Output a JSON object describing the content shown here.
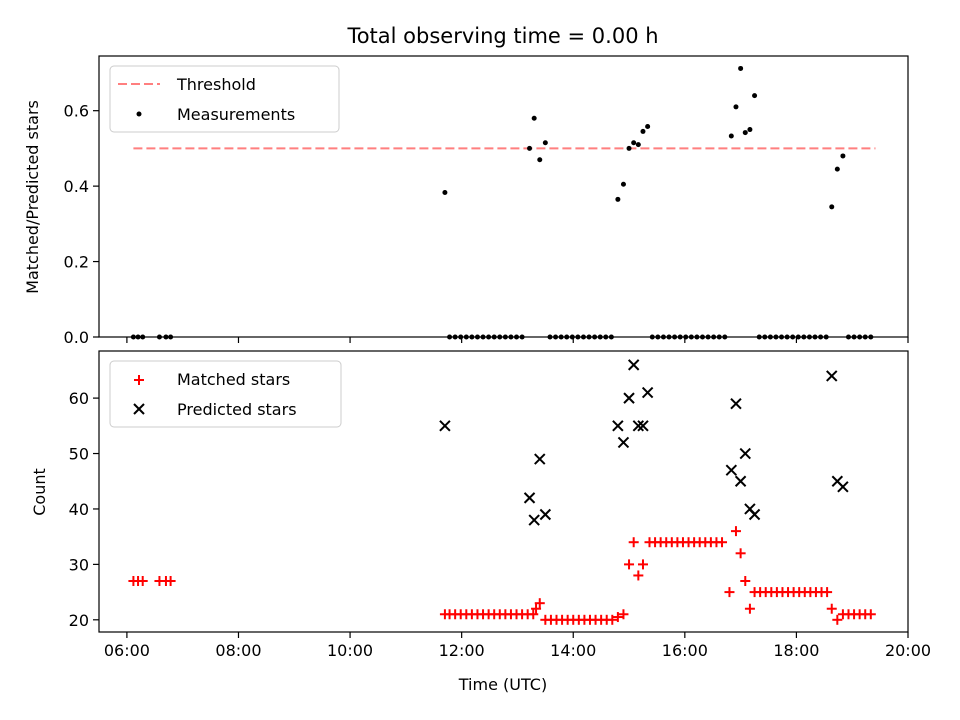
{
  "chart_data": [
    {
      "type": "scatter",
      "title": "Total observing time = 0.00 h",
      "xlabel": "",
      "ylabel": "Matched/Predicted stars",
      "xlim": [
        "05:30",
        "20:00"
      ],
      "ylim": [
        0,
        0.745
      ],
      "x_ticks": [
        "06:00",
        "08:00",
        "10:00",
        "12:00",
        "14:00",
        "16:00",
        "18:00",
        "20:00"
      ],
      "y_ticks": [
        "0.0",
        "0.2",
        "0.4",
        "0.6"
      ],
      "grid": false,
      "legend": {
        "position": "top-left",
        "entries": [
          {
            "label": "Threshold",
            "style": "dashed-line",
            "color": "#ff7f7f"
          },
          {
            "label": "Measurements",
            "style": "dot",
            "color": "#000000"
          }
        ]
      },
      "threshold": {
        "name": "Threshold",
        "y": 0.5,
        "x_start": "06:07",
        "x_end": "19:25",
        "color": "#ff7f7f"
      },
      "series": [
        {
          "name": "Measurements",
          "color": "#000000",
          "points": [
            [
              "06:07",
              0
            ],
            [
              "06:12",
              0
            ],
            [
              "06:17",
              0
            ],
            [
              "06:35",
              0
            ],
            [
              "06:42",
              0
            ],
            [
              "06:47",
              0
            ],
            [
              "11:42",
              0.383
            ],
            [
              "11:47",
              0
            ],
            [
              "11:53",
              0
            ],
            [
              "11:59",
              0
            ],
            [
              "12:05",
              0
            ],
            [
              "12:11",
              0
            ],
            [
              "12:17",
              0
            ],
            [
              "12:23",
              0
            ],
            [
              "12:29",
              0
            ],
            [
              "12:35",
              0
            ],
            [
              "12:41",
              0
            ],
            [
              "12:47",
              0
            ],
            [
              "12:53",
              0
            ],
            [
              "12:59",
              0
            ],
            [
              "13:05",
              0
            ],
            [
              "13:13",
              0.5
            ],
            [
              "13:18",
              0.58
            ],
            [
              "13:24",
              0.47
            ],
            [
              "13:30",
              0.515
            ],
            [
              "13:35",
              0
            ],
            [
              "13:41",
              0
            ],
            [
              "13:47",
              0
            ],
            [
              "13:53",
              0
            ],
            [
              "13:59",
              0
            ],
            [
              "14:05",
              0
            ],
            [
              "14:11",
              0
            ],
            [
              "14:17",
              0
            ],
            [
              "14:23",
              0
            ],
            [
              "14:29",
              0
            ],
            [
              "14:35",
              0
            ],
            [
              "14:41",
              0
            ],
            [
              "14:48",
              0.365
            ],
            [
              "14:54",
              0.405
            ],
            [
              "15:00",
              0.5
            ],
            [
              "15:05",
              0.515
            ],
            [
              "15:10",
              0.51
            ],
            [
              "15:15",
              0.545
            ],
            [
              "15:20",
              0.558
            ],
            [
              "15:25",
              0
            ],
            [
              "15:31",
              0
            ],
            [
              "15:37",
              0
            ],
            [
              "15:43",
              0
            ],
            [
              "15:49",
              0
            ],
            [
              "15:55",
              0
            ],
            [
              "16:01",
              0
            ],
            [
              "16:07",
              0
            ],
            [
              "16:13",
              0
            ],
            [
              "16:19",
              0
            ],
            [
              "16:25",
              0
            ],
            [
              "16:31",
              0
            ],
            [
              "16:37",
              0
            ],
            [
              "16:43",
              0
            ],
            [
              "16:50",
              0.533
            ],
            [
              "16:55",
              0.61
            ],
            [
              "17:00",
              0.712
            ],
            [
              "17:05",
              0.542
            ],
            [
              "17:10",
              0.55
            ],
            [
              "17:15",
              0.64
            ],
            [
              "17:20",
              0
            ],
            [
              "17:26",
              0
            ],
            [
              "17:32",
              0
            ],
            [
              "17:38",
              0
            ],
            [
              "17:44",
              0
            ],
            [
              "17:50",
              0
            ],
            [
              "17:56",
              0
            ],
            [
              "18:02",
              0
            ],
            [
              "18:08",
              0
            ],
            [
              "18:14",
              0
            ],
            [
              "18:20",
              0
            ],
            [
              "18:26",
              0
            ],
            [
              "18:32",
              0
            ],
            [
              "18:38",
              0.345
            ],
            [
              "18:44",
              0.445
            ],
            [
              "18:50",
              0.48
            ],
            [
              "18:56",
              0
            ],
            [
              "19:02",
              0
            ],
            [
              "19:08",
              0
            ],
            [
              "19:14",
              0
            ],
            [
              "19:20",
              0
            ]
          ]
        }
      ]
    },
    {
      "type": "scatter",
      "title": "",
      "xlabel": "Time (UTC)",
      "ylabel": "Count",
      "xlim": [
        "05:30",
        "20:00"
      ],
      "ylim": [
        17.8,
        68.5
      ],
      "x_ticks": [
        "06:00",
        "08:00",
        "10:00",
        "12:00",
        "14:00",
        "16:00",
        "18:00",
        "20:00"
      ],
      "y_ticks": [
        "20",
        "30",
        "40",
        "50",
        "60"
      ],
      "grid": false,
      "legend": {
        "position": "top-left",
        "entries": [
          {
            "label": "Matched stars",
            "style": "plus",
            "color": "#ff0000"
          },
          {
            "label": "Predicted stars",
            "style": "x",
            "color": "#000000"
          }
        ]
      },
      "series": [
        {
          "name": "Matched stars",
          "marker": "plus",
          "color": "#ff0000",
          "points": [
            [
              "06:07",
              27
            ],
            [
              "06:12",
              27
            ],
            [
              "06:17",
              27
            ],
            [
              "06:35",
              27
            ],
            [
              "06:42",
              27
            ],
            [
              "06:47",
              27
            ],
            [
              "11:42",
              21
            ],
            [
              "11:47",
              21
            ],
            [
              "11:53",
              21
            ],
            [
              "11:59",
              21
            ],
            [
              "12:05",
              21
            ],
            [
              "12:11",
              21
            ],
            [
              "12:17",
              21
            ],
            [
              "12:23",
              21
            ],
            [
              "12:29",
              21
            ],
            [
              "12:35",
              21
            ],
            [
              "12:41",
              21
            ],
            [
              "12:47",
              21
            ],
            [
              "12:53",
              21
            ],
            [
              "12:59",
              21
            ],
            [
              "13:05",
              21
            ],
            [
              "13:11",
              21
            ],
            [
              "13:17",
              21
            ],
            [
              "13:20",
              22
            ],
            [
              "13:24",
              23
            ],
            [
              "13:30",
              20
            ],
            [
              "13:36",
              20
            ],
            [
              "13:42",
              20
            ],
            [
              "13:48",
              20
            ],
            [
              "13:54",
              20
            ],
            [
              "14:00",
              20
            ],
            [
              "14:06",
              20
            ],
            [
              "14:12",
              20
            ],
            [
              "14:18",
              20
            ],
            [
              "14:24",
              20
            ],
            [
              "14:30",
              20
            ],
            [
              "14:36",
              20
            ],
            [
              "14:42",
              20
            ],
            [
              "14:48",
              20.5
            ],
            [
              "14:54",
              21
            ],
            [
              "15:00",
              30
            ],
            [
              "15:05",
              34
            ],
            [
              "15:10",
              28
            ],
            [
              "15:15",
              30
            ],
            [
              "15:22",
              34
            ],
            [
              "15:28",
              34
            ],
            [
              "15:34",
              34
            ],
            [
              "15:40",
              34
            ],
            [
              "15:46",
              34
            ],
            [
              "15:52",
              34
            ],
            [
              "15:58",
              34
            ],
            [
              "16:04",
              34
            ],
            [
              "16:10",
              34
            ],
            [
              "16:16",
              34
            ],
            [
              "16:22",
              34
            ],
            [
              "16:28",
              34
            ],
            [
              "16:34",
              34
            ],
            [
              "16:40",
              34
            ],
            [
              "16:48",
              25
            ],
            [
              "16:55",
              36
            ],
            [
              "17:00",
              32
            ],
            [
              "17:05",
              27
            ],
            [
              "17:10",
              22
            ],
            [
              "17:15",
              25
            ],
            [
              "17:21",
              25
            ],
            [
              "17:27",
              25
            ],
            [
              "17:33",
              25
            ],
            [
              "17:39",
              25
            ],
            [
              "17:45",
              25
            ],
            [
              "17:51",
              25
            ],
            [
              "17:57",
              25
            ],
            [
              "18:03",
              25
            ],
            [
              "18:09",
              25
            ],
            [
              "18:15",
              25
            ],
            [
              "18:21",
              25
            ],
            [
              "18:27",
              25
            ],
            [
              "18:33",
              25
            ],
            [
              "18:38",
              22
            ],
            [
              "18:44",
              20
            ],
            [
              "18:50",
              21
            ],
            [
              "18:56",
              21
            ],
            [
              "19:02",
              21
            ],
            [
              "19:08",
              21
            ],
            [
              "19:14",
              21
            ],
            [
              "19:20",
              21
            ]
          ]
        },
        {
          "name": "Predicted stars",
          "marker": "x",
          "color": "#000000",
          "points": [
            [
              "11:42",
              55
            ],
            [
              "13:13",
              42
            ],
            [
              "13:18",
              38
            ],
            [
              "13:24",
              49
            ],
            [
              "13:30",
              39
            ],
            [
              "14:48",
              55
            ],
            [
              "14:54",
              52
            ],
            [
              "15:00",
              60
            ],
            [
              "15:05",
              66
            ],
            [
              "15:10",
              55
            ],
            [
              "15:15",
              55
            ],
            [
              "15:20",
              61
            ],
            [
              "16:50",
              47
            ],
            [
              "16:55",
              59
            ],
            [
              "17:00",
              45
            ],
            [
              "17:05",
              50
            ],
            [
              "17:10",
              40
            ],
            [
              "17:15",
              39
            ],
            [
              "18:38",
              64
            ],
            [
              "18:44",
              45
            ],
            [
              "18:50",
              44
            ]
          ]
        }
      ]
    }
  ]
}
